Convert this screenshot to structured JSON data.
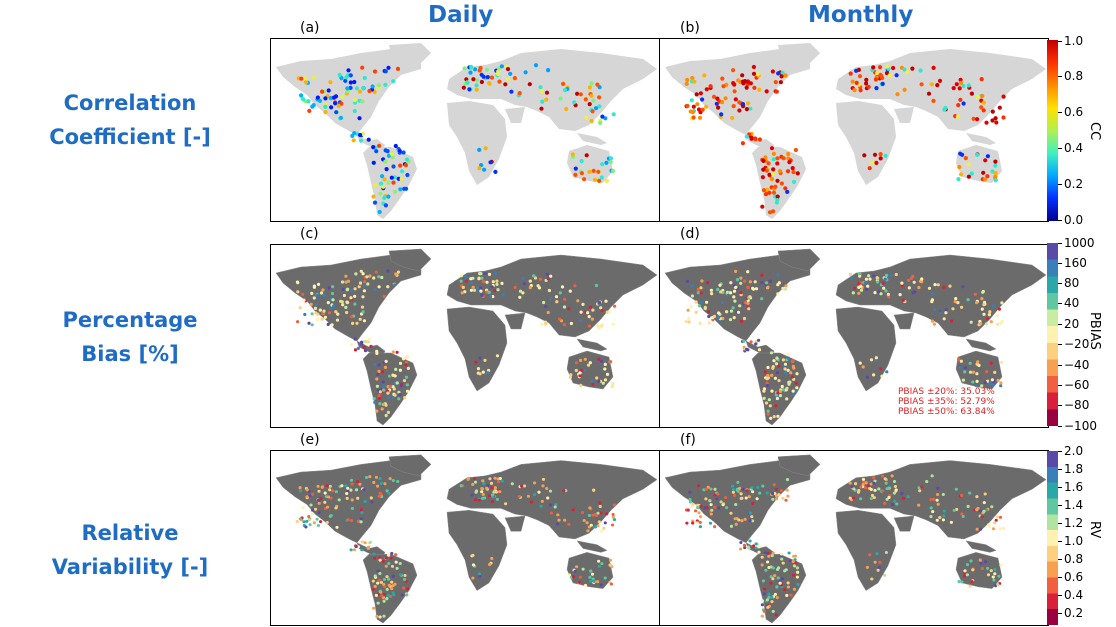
{
  "columns": {
    "daily": "Daily",
    "monthly": "Monthly"
  },
  "rows": [
    {
      "line1": "Correlation",
      "line2": "Coefficient [-]"
    },
    {
      "line1": "Percentage",
      "line2": "Bias [%]"
    },
    {
      "line1": "Relative",
      "line2": "Variability [-]"
    }
  ],
  "panels": [
    "(a)",
    "(b)",
    "(c)",
    "(d)",
    "(e)",
    "(f)"
  ],
  "colorbars": {
    "cc": {
      "label": "CC",
      "ticks": [
        "1.0",
        "0.8",
        "0.6",
        "0.4",
        "0.2",
        "0.0"
      ],
      "colors": [
        "#c00000",
        "#ff3000",
        "#ff8c00",
        "#ffe000",
        "#b0f050",
        "#40f0c0",
        "#00a8ff",
        "#0030ff",
        "#00008c"
      ]
    },
    "pbias": {
      "label": "PBIAS",
      "ticks": [
        "1000",
        "160",
        "80",
        "40",
        "20",
        "−20",
        "−40",
        "−60",
        "−80",
        "−100"
      ],
      "colors": [
        "#5a4aa8",
        "#3a80b8",
        "#2aa8a8",
        "#60c8a0",
        "#c8eca0",
        "#fff2b0",
        "#fdd080",
        "#f9a050",
        "#f06040",
        "#d8203a",
        "#980040"
      ]
    },
    "rv": {
      "label": "RV",
      "ticks": [
        "2.0",
        "1.8",
        "1.6",
        "1.4",
        "1.2",
        "1.0",
        "0.8",
        "0.6",
        "0.4",
        "0.2"
      ],
      "colors": [
        "#5a4aa8",
        "#3a80b8",
        "#2aa8a8",
        "#60c8a0",
        "#b0e4a0",
        "#fff2b0",
        "#fdd080",
        "#f9a050",
        "#f06040",
        "#d8203a",
        "#980040"
      ]
    }
  },
  "stats": [
    "PBIAS ±20%: 35.03%",
    "PBIAS ±35%: 52.79%",
    "PBIAS ±50%: 63.84%"
  ],
  "map_colors": {
    "land_cc": "#d6d6d6",
    "land_dark": "#6b6b6b",
    "ocean": "#ffffff",
    "title_color": "#1f6cc4"
  }
}
